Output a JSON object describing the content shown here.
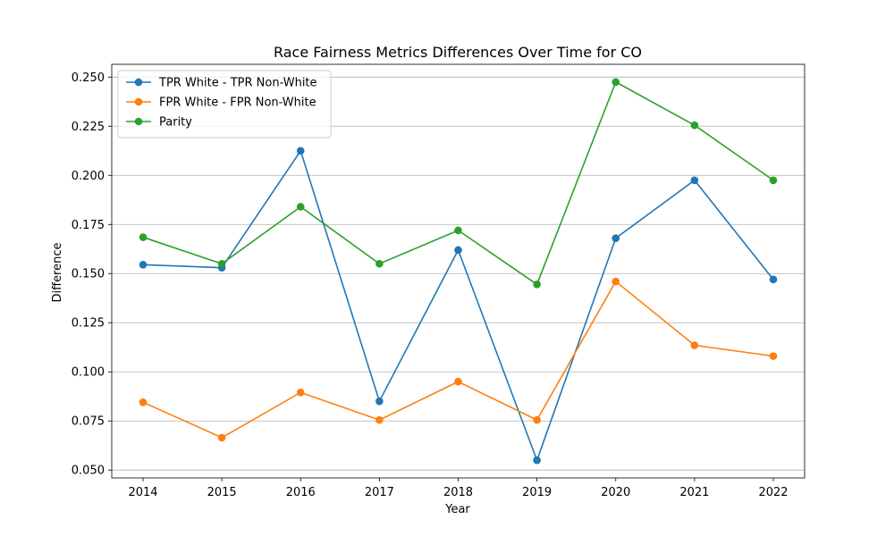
{
  "chart_data": {
    "type": "line",
    "title": "Race Fairness Metrics Differences Over Time for CO",
    "xlabel": "Year",
    "ylabel": "Difference",
    "categories": [
      "2014",
      "2015",
      "2016",
      "2017",
      "2018",
      "2019",
      "2020",
      "2021",
      "2022"
    ],
    "ylim": [
      0.046,
      0.2565
    ],
    "yticks": [
      "0.050",
      "0.075",
      "0.100",
      "0.125",
      "0.150",
      "0.175",
      "0.200",
      "0.225",
      "0.250"
    ],
    "grid": "horizontal",
    "legend_position": "top-left",
    "series": [
      {
        "name": "TPR White - TPR Non-White",
        "color": "#1f77b4",
        "values": [
          0.1545,
          0.153,
          0.2125,
          0.085,
          0.162,
          0.055,
          0.168,
          0.1975,
          0.147
        ]
      },
      {
        "name": "FPR White - FPR Non-White",
        "color": "#ff7f0e",
        "values": [
          0.0845,
          0.0665,
          0.0895,
          0.0755,
          0.095,
          0.0755,
          0.146,
          0.1135,
          0.108
        ]
      },
      {
        "name": "Parity",
        "color": "#2ca02c",
        "values": [
          0.1685,
          0.155,
          0.184,
          0.155,
          0.172,
          0.1445,
          0.2475,
          0.2255,
          0.1975
        ]
      }
    ]
  }
}
